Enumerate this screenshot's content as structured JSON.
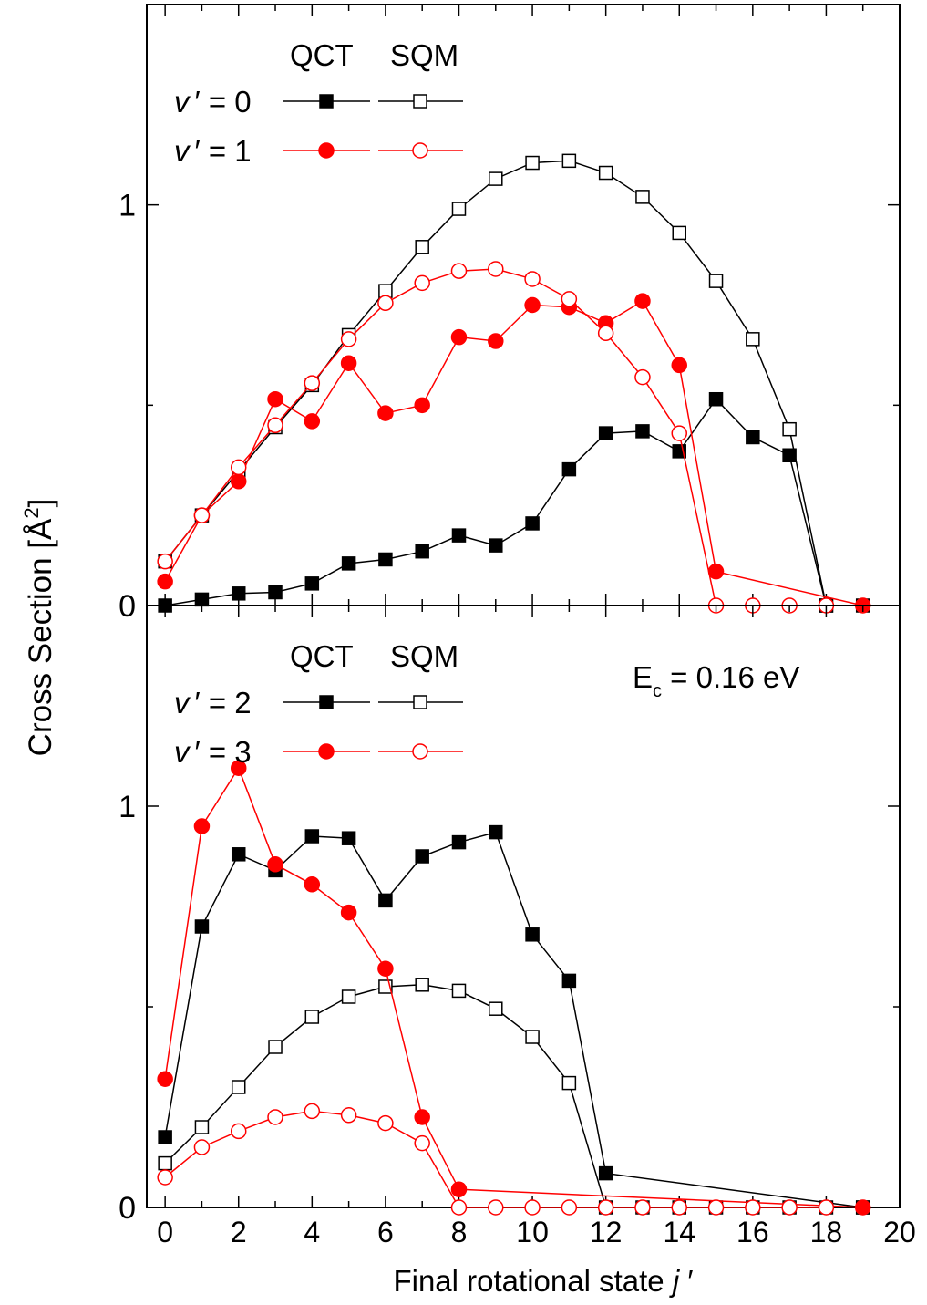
{
  "chart_data": [
    {
      "type": "line",
      "panel": "top",
      "xlim": [
        -0.5,
        20
      ],
      "ylim": [
        0,
        1.5
      ],
      "yticks": [
        0,
        1
      ],
      "legend": {
        "header_left": "QCT",
        "header_right": "SQM",
        "placement": "top-left",
        "rows": [
          {
            "var": "v",
            "prime": "′",
            "rest": " = 0",
            "color": "#000000"
          },
          {
            "var": "v",
            "prime": "′",
            "rest": " = 1",
            "color": "#ff0000"
          }
        ]
      },
      "series": [
        {
          "method": "QCT",
          "level": "v′=0",
          "color": "#000000",
          "marker": "square-filled",
          "x": [
            0,
            1,
            2,
            3,
            4,
            5,
            6,
            7,
            8,
            9,
            10,
            11,
            12,
            13,
            14,
            15,
            16,
            17,
            18,
            19
          ],
          "y": [
            0.0,
            0.015,
            0.03,
            0.033,
            0.055,
            0.105,
            0.115,
            0.135,
            0.175,
            0.15,
            0.205,
            0.34,
            0.43,
            0.435,
            0.385,
            0.515,
            0.42,
            0.375,
            0.0,
            0.0
          ]
        },
        {
          "method": "SQM",
          "level": "v′=0",
          "color": "#000000",
          "marker": "square-open",
          "x": [
            0,
            1,
            2,
            3,
            4,
            5,
            6,
            7,
            8,
            9,
            10,
            11,
            12,
            13,
            14,
            15,
            16,
            17,
            18
          ],
          "y": [
            0.11,
            0.225,
            0.335,
            0.445,
            0.55,
            0.675,
            0.785,
            0.895,
            0.99,
            1.065,
            1.105,
            1.11,
            1.08,
            1.02,
            0.93,
            0.81,
            0.665,
            0.44,
            0.0
          ]
        },
        {
          "method": "QCT",
          "level": "v′=1",
          "color": "#ff0000",
          "marker": "circle-filled",
          "x": [
            0,
            1,
            2,
            3,
            4,
            5,
            6,
            7,
            8,
            9,
            10,
            11,
            12,
            13,
            14,
            15,
            19
          ],
          "y": [
            0.06,
            0.225,
            0.31,
            0.515,
            0.46,
            0.605,
            0.48,
            0.5,
            0.67,
            0.66,
            0.75,
            0.745,
            0.705,
            0.76,
            0.6,
            0.085,
            0.0
          ]
        },
        {
          "method": "SQM",
          "level": "v′=1",
          "color": "#ff0000",
          "marker": "circle-open",
          "x": [
            0,
            1,
            2,
            3,
            4,
            5,
            6,
            7,
            8,
            9,
            10,
            11,
            12,
            13,
            14,
            15,
            16,
            17,
            18
          ],
          "y": [
            0.11,
            0.225,
            0.345,
            0.45,
            0.555,
            0.665,
            0.755,
            0.805,
            0.835,
            0.84,
            0.815,
            0.765,
            0.68,
            0.57,
            0.43,
            0.0,
            0.0,
            0.0,
            0.0
          ]
        }
      ]
    },
    {
      "type": "line",
      "panel": "bottom",
      "xlim": [
        -0.5,
        20
      ],
      "ylim": [
        0,
        1.5
      ],
      "yticks": [
        0,
        1
      ],
      "xticks": [
        0,
        2,
        4,
        6,
        8,
        10,
        12,
        14,
        16,
        18,
        20
      ],
      "xlabel": {
        "prefix": "Final rotational state ",
        "var": "j",
        "prime": " ′"
      },
      "annotation": {
        "main": "E",
        "sub": "c",
        "rest": " = 0.16 eV"
      },
      "legend": {
        "header_left": "QCT",
        "header_right": "SQM",
        "placement": "top-left",
        "rows": [
          {
            "var": "v",
            "prime": "′",
            "rest": " = 2",
            "color": "#000000"
          },
          {
            "var": "v",
            "prime": "′",
            "rest": " = 3",
            "color": "#ff0000"
          }
        ]
      },
      "series": [
        {
          "method": "QCT",
          "level": "v′=2",
          "color": "#000000",
          "marker": "square-filled",
          "x": [
            0,
            1,
            2,
            3,
            4,
            5,
            6,
            7,
            8,
            9,
            10,
            11,
            12,
            19
          ],
          "y": [
            0.175,
            0.7,
            0.88,
            0.84,
            0.925,
            0.92,
            0.765,
            0.875,
            0.91,
            0.935,
            0.68,
            0.565,
            0.085,
            0.0
          ]
        },
        {
          "method": "SQM",
          "level": "v′=2",
          "color": "#000000",
          "marker": "square-open",
          "x": [
            0,
            1,
            2,
            3,
            4,
            5,
            6,
            7,
            8,
            9,
            10,
            11,
            12,
            13,
            14,
            15,
            16,
            17,
            18,
            19
          ],
          "y": [
            0.11,
            0.2,
            0.3,
            0.4,
            0.475,
            0.525,
            0.55,
            0.555,
            0.54,
            0.495,
            0.425,
            0.31,
            0.0,
            0.0,
            0.0,
            0.0,
            0.0,
            0.0,
            0.0,
            0.0
          ]
        },
        {
          "method": "QCT",
          "level": "v′=3",
          "color": "#ff0000",
          "marker": "circle-filled",
          "x": [
            0,
            1,
            2,
            3,
            4,
            5,
            6,
            7,
            8,
            19
          ],
          "y": [
            0.32,
            0.95,
            1.095,
            0.855,
            0.805,
            0.735,
            0.595,
            0.225,
            0.045,
            0.0
          ]
        },
        {
          "method": "SQM",
          "level": "v′=3",
          "color": "#ff0000",
          "marker": "circle-open",
          "x": [
            0,
            1,
            2,
            3,
            4,
            5,
            6,
            7,
            8,
            9,
            10,
            11,
            12,
            13,
            14,
            15,
            16,
            17,
            18
          ],
          "y": [
            0.075,
            0.15,
            0.19,
            0.225,
            0.24,
            0.23,
            0.21,
            0.16,
            0.0,
            0.0,
            0.0,
            0.0,
            0.0,
            0.0,
            0.0,
            0.0,
            0.0,
            0.0,
            0.0
          ]
        }
      ]
    }
  ],
  "ylabel": {
    "main": "Cross Section [",
    "unit": "Å",
    "sup": "2",
    "close": "]"
  }
}
